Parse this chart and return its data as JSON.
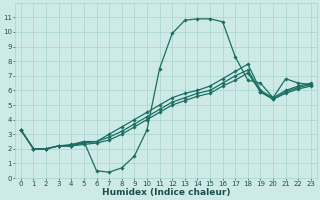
{
  "xlabel": "Humidex (Indice chaleur)",
  "bg_color": "#ceeae6",
  "grid_color": "#a8d4d0",
  "line_color": "#1a6e64",
  "xlim": [
    -0.5,
    23.5
  ],
  "ylim": [
    0,
    12
  ],
  "xticks": [
    0,
    1,
    2,
    3,
    4,
    5,
    6,
    7,
    8,
    9,
    10,
    11,
    12,
    13,
    14,
    15,
    16,
    17,
    18,
    19,
    20,
    21,
    22,
    23
  ],
  "yticks": [
    0,
    1,
    2,
    3,
    4,
    5,
    6,
    7,
    8,
    9,
    10,
    11
  ],
  "series_x": [
    [
      0,
      1,
      2,
      3,
      4,
      5,
      6,
      7,
      8,
      9,
      10,
      11,
      12,
      13,
      14,
      15,
      16,
      17,
      18,
      19,
      20,
      21,
      22,
      23
    ],
    [
      0,
      1,
      2,
      3,
      4,
      5,
      6,
      7,
      8,
      9,
      10,
      11,
      12,
      13,
      14,
      15,
      16,
      17,
      18,
      19,
      20,
      21,
      22,
      23
    ],
    [
      0,
      1,
      2,
      3,
      4,
      5,
      6,
      7,
      8,
      9,
      10,
      11,
      12,
      13,
      14,
      15,
      16,
      17,
      18,
      19,
      20,
      21,
      22,
      23
    ],
    [
      0,
      1,
      2,
      3,
      4,
      5,
      6,
      7,
      8,
      9,
      10,
      11,
      12,
      13,
      14,
      15,
      16,
      17,
      18,
      19,
      20,
      21,
      22,
      23
    ]
  ],
  "series_y": [
    [
      3.3,
      2.0,
      2.0,
      2.2,
      2.3,
      2.5,
      0.5,
      0.4,
      0.7,
      1.5,
      3.3,
      7.5,
      9.9,
      10.8,
      10.9,
      10.9,
      10.7,
      8.3,
      6.7,
      6.5,
      5.5,
      6.8,
      6.5,
      6.4
    ],
    [
      3.3,
      2.0,
      2.0,
      2.2,
      2.2,
      2.5,
      2.5,
      3.0,
      3.5,
      4.0,
      4.5,
      5.0,
      5.5,
      5.8,
      6.0,
      6.3,
      6.8,
      7.3,
      7.8,
      6.0,
      5.5,
      6.0,
      6.3,
      6.5
    ],
    [
      3.3,
      2.0,
      2.0,
      2.2,
      2.2,
      2.4,
      2.5,
      2.8,
      3.2,
      3.7,
      4.2,
      4.7,
      5.2,
      5.5,
      5.8,
      6.0,
      6.5,
      7.0,
      7.4,
      5.9,
      5.4,
      5.9,
      6.2,
      6.4
    ],
    [
      3.3,
      2.0,
      2.0,
      2.2,
      2.2,
      2.3,
      2.4,
      2.6,
      3.0,
      3.5,
      4.0,
      4.5,
      5.0,
      5.3,
      5.6,
      5.8,
      6.3,
      6.7,
      7.2,
      5.9,
      5.4,
      5.8,
      6.1,
      6.3
    ]
  ],
  "marker": "D",
  "markersize": 1.8,
  "linewidth": 0.9,
  "font_color": "#1a5050",
  "tick_fontsize": 5,
  "label_fontsize": 6.5
}
